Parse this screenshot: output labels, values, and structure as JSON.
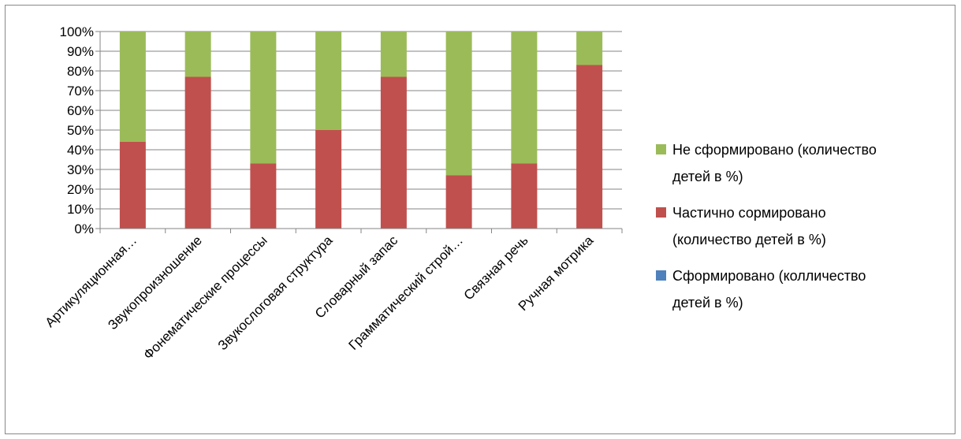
{
  "chart_data": {
    "type": "bar",
    "stacked": "percent",
    "categories": [
      "Артикуляционная…",
      "Звукопроизношение",
      "Фонематические процессы",
      "Звукослоговая структура",
      "Словарный запас",
      "Грамматический строй…",
      "Связная речь",
      "Ручная мотрика"
    ],
    "series": [
      {
        "name": "Сформировано (колличество детей в %)",
        "color": "#4f81bd",
        "values": [
          0,
          0,
          0,
          0,
          0,
          0,
          0,
          0
        ]
      },
      {
        "name": "Частично сормировано (количество детей в %)",
        "color": "#c0504d",
        "values": [
          44,
          77,
          33,
          50,
          77,
          27,
          33,
          83
        ]
      },
      {
        "name": "Не сформировано (количество детей в %)",
        "color": "#9bbb59",
        "values": [
          56,
          23,
          67,
          50,
          23,
          73,
          67,
          17
        ]
      }
    ],
    "yticks": [
      "0%",
      "10%",
      "20%",
      "30%",
      "40%",
      "50%",
      "60%",
      "70%",
      "80%",
      "90%",
      "100%"
    ],
    "ylim": [
      0,
      100
    ],
    "grid": true,
    "legend": {
      "position": "right",
      "entries": [
        {
          "series": 2,
          "lines": [
            "Не сформировано (количество",
            "детей в %)"
          ]
        },
        {
          "series": 1,
          "lines": [
            "Частично сормировано",
            "(количество детей в %)"
          ]
        },
        {
          "series": 0,
          "lines": [
            "Сформировано (колличество",
            "детей в %)"
          ]
        }
      ]
    }
  }
}
